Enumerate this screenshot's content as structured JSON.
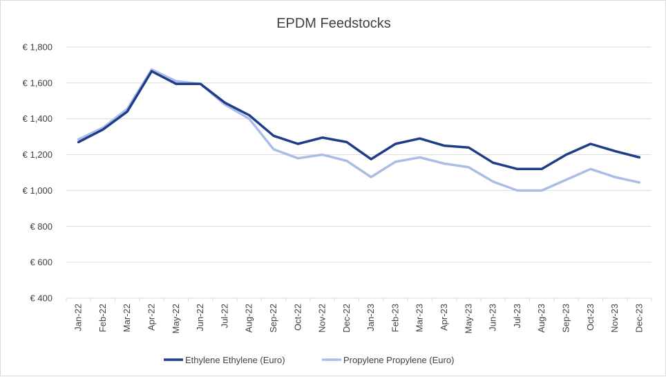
{
  "chart_data": {
    "type": "line",
    "title": "EPDM Feedstocks",
    "xlabel": "",
    "ylabel": "",
    "ylim": [
      400,
      1800
    ],
    "yticks": [
      400,
      600,
      800,
      1000,
      1200,
      1400,
      1600,
      1800
    ],
    "ytick_labels": [
      "€ 400",
      "€ 600",
      "€ 800",
      "€ 1,000",
      "€ 1,200",
      "€ 1,400",
      "€ 1,600",
      "€ 1,800"
    ],
    "grid": true,
    "legend_position": "bottom",
    "categories": [
      "Jan-22",
      "Feb-22",
      "Mar-22",
      "Apr-22",
      "May-22",
      "Jun-22",
      "Jul-22",
      "Aug-22",
      "Sep-22",
      "Oct-22",
      "Nov-22",
      "Dec-22",
      "Jan-23",
      "Feb-23",
      "Mar-23",
      "Apr-23",
      "May-23",
      "Jun-23",
      "Jul-23",
      "Aug-23",
      "Sep-23",
      "Oct-23",
      "Nov-23",
      "Dec-23"
    ],
    "series": [
      {
        "name": "Ethylene Ethylene (Euro)",
        "color": "#1f3c88",
        "values": [
          1270,
          1340,
          1440,
          1665,
          1595,
          1595,
          1490,
          1420,
          1305,
          1260,
          1295,
          1270,
          1175,
          1260,
          1290,
          1250,
          1240,
          1155,
          1120,
          1120,
          1200,
          1260,
          1220,
          1185
        ]
      },
      {
        "name": "Propylene Propylene (Euro)",
        "color": "#aabde6",
        "values": [
          1285,
          1350,
          1455,
          1675,
          1610,
          1595,
          1480,
          1400,
          1230,
          1180,
          1200,
          1165,
          1075,
          1160,
          1185,
          1150,
          1130,
          1050,
          1000,
          1000,
          1060,
          1120,
          1075,
          1045
        ]
      }
    ]
  }
}
